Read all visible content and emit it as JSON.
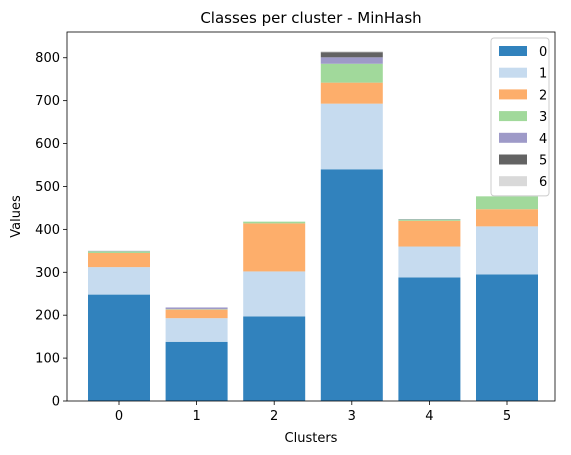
{
  "chart_data": {
    "type": "bar",
    "stacked": true,
    "title": "Classes per cluster - MinHash",
    "xlabel": "Clusters",
    "ylabel": "Values",
    "categories": [
      "0",
      "1",
      "2",
      "3",
      "4",
      "5"
    ],
    "ylim": [
      0,
      860
    ],
    "yticks": [
      0,
      100,
      200,
      300,
      400,
      500,
      600,
      700,
      800
    ],
    "grid": false,
    "legend_position": "top-right",
    "series": [
      {
        "name": "0",
        "color": "#3182bd",
        "values": [
          248,
          138,
          197,
          540,
          288,
          295
        ]
      },
      {
        "name": "1",
        "color": "#c6dbef",
        "values": [
          64,
          55,
          105,
          153,
          72,
          112
        ]
      },
      {
        "name": "2",
        "color": "#fdae6b",
        "values": [
          33,
          20,
          112,
          49,
          60,
          40
        ]
      },
      {
        "name": "3",
        "color": "#a1d99b",
        "values": [
          4,
          1,
          4,
          44,
          3,
          30
        ]
      },
      {
        "name": "4",
        "color": "#9e9ac8",
        "values": [
          1,
          4,
          0,
          15,
          1,
          0
        ]
      },
      {
        "name": "5",
        "color": "#636363",
        "values": [
          0,
          0,
          0,
          12,
          0,
          0
        ]
      },
      {
        "name": "6",
        "color": "#d9d9d9",
        "values": [
          0,
          0,
          0,
          2,
          0,
          0
        ]
      }
    ]
  }
}
